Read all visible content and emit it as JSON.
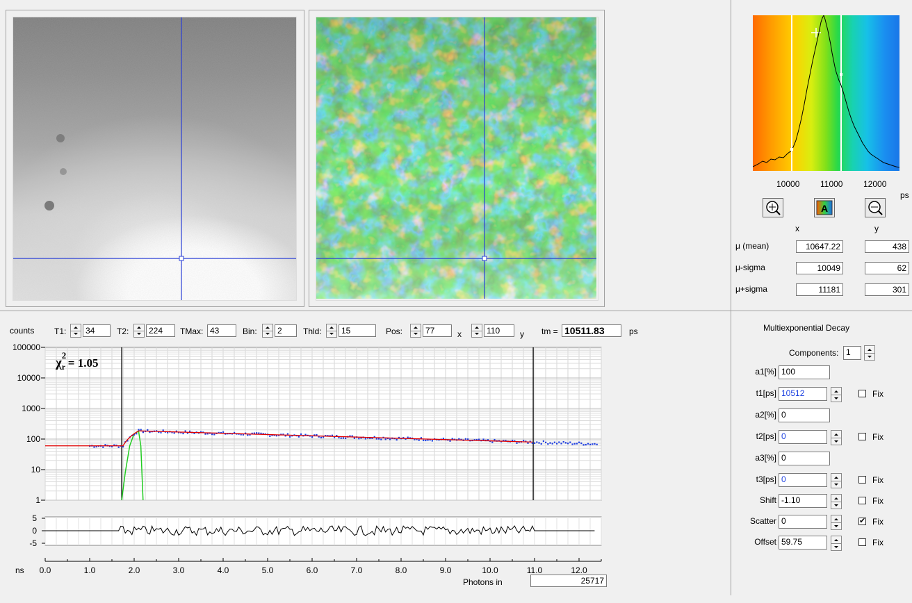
{
  "window": {
    "title": ""
  },
  "histogram": {
    "x_ticks": [
      "10000",
      "11000",
      "12000"
    ],
    "unit": "ps",
    "axis_labels": {
      "x": "x",
      "y": "y"
    }
  },
  "stats": {
    "rows": [
      {
        "label": "μ (mean)",
        "x": "10647.22",
        "y": "438"
      },
      {
        "label": "μ-sigma",
        "x": "10049",
        "y": "62"
      },
      {
        "label": "μ+sigma",
        "x": "11181",
        "y": "301"
      }
    ]
  },
  "toolbar": {
    "counts_label": "counts",
    "t1_label": "T1:",
    "t1_value": "34",
    "t2_label": "T2:",
    "t2_value": "224",
    "tmax_label": "TMax:",
    "tmax_value": "43",
    "bin_label": "Bin:",
    "bin_value": "2",
    "thld_label": "Thld:",
    "thld_value": "15",
    "pos_label": "Pos:",
    "pos_x_value": "77",
    "x_label": "x",
    "pos_y_value": "110",
    "y_label": "y",
    "tm_label": "tm =",
    "tm_value": "10511.83",
    "tm_unit": "ps"
  },
  "decay_plot": {
    "chi_label": "χ",
    "chi_sub": "r",
    "chi_sup": "2",
    "chi_value": "= 1.05",
    "y_ticks": [
      "100000",
      "10000",
      "1000",
      "100",
      "10",
      "1"
    ],
    "resid_ticks": [
      "5",
      "0",
      "-5"
    ],
    "x_unit": "ns",
    "x_ticks": [
      "0.0",
      "1.0",
      "2.0",
      "3.0",
      "4.0",
      "5.0",
      "6.0",
      "7.0",
      "8.0",
      "9.0",
      "10.0",
      "11.0",
      "12.0"
    ],
    "photons_label": "Photons in",
    "photons_value": "25717",
    "colors": {
      "data": "#1f3fe0",
      "fit": "#e00000",
      "irf": "#22cc22"
    }
  },
  "chart_data": {
    "type": "scatter",
    "xlabel": "ns",
    "ylabel": "counts",
    "yscale": "log",
    "xlim": [
      0,
      12.5
    ],
    "ylim": [
      1,
      100000
    ],
    "cursor_t1_ns": 1.72,
    "cursor_t2_ns": 10.97,
    "series": [
      {
        "type": "scatter",
        "x": [
          1.0,
          1.5,
          1.8,
          2.0,
          2.2,
          3.0,
          4.0,
          5.0,
          6.0,
          7.0,
          8.0,
          9.0,
          10.0,
          11.0,
          12.0,
          12.4
        ],
        "values": [
          60,
          58,
          60,
          150,
          180,
          160,
          145,
          135,
          120,
          105,
          95,
          90,
          85,
          80,
          80,
          80
        ]
      },
      {
        "type": "line",
        "x": [
          0.0,
          1.0,
          1.75,
          2.1,
          3.0,
          5.0,
          7.0,
          9.0,
          11.0
        ],
        "values": [
          60,
          60,
          60,
          185,
          160,
          135,
          110,
          95,
          78
        ]
      },
      {
        "type": "line",
        "x": [
          1.72,
          1.8,
          1.9,
          2.0,
          2.1,
          2.15,
          2.2
        ],
        "values": [
          1,
          8,
          60,
          150,
          180,
          60,
          1
        ]
      }
    ]
  },
  "decay_panel": {
    "title": "Multiexponential Decay",
    "components_label": "Components:",
    "components_value": "1",
    "fix_label": "Fix",
    "rows": [
      {
        "label": "a1[%]",
        "value": "100",
        "spin": false,
        "fix": null,
        "blue": false
      },
      {
        "label": "t1[ps]",
        "value": "10512",
        "spin": true,
        "fix": false,
        "blue": true
      },
      {
        "label": "a2[%]",
        "value": "0",
        "spin": false,
        "fix": null,
        "blue": false
      },
      {
        "label": "t2[ps]",
        "value": "0",
        "spin": true,
        "fix": false,
        "blue": true
      },
      {
        "label": "a3[%]",
        "value": "0",
        "spin": false,
        "fix": null,
        "blue": false
      },
      {
        "label": "t3[ps]",
        "value": "0",
        "spin": true,
        "fix": false,
        "blue": true
      },
      {
        "label": "Shift",
        "value": "-1.10",
        "spin": true,
        "fix": false,
        "blue": false
      },
      {
        "label": "Scatter",
        "value": "0",
        "spin": true,
        "fix": true,
        "blue": false
      },
      {
        "label": "Offset",
        "value": "59.75",
        "spin": true,
        "fix": false,
        "blue": false
      }
    ]
  }
}
